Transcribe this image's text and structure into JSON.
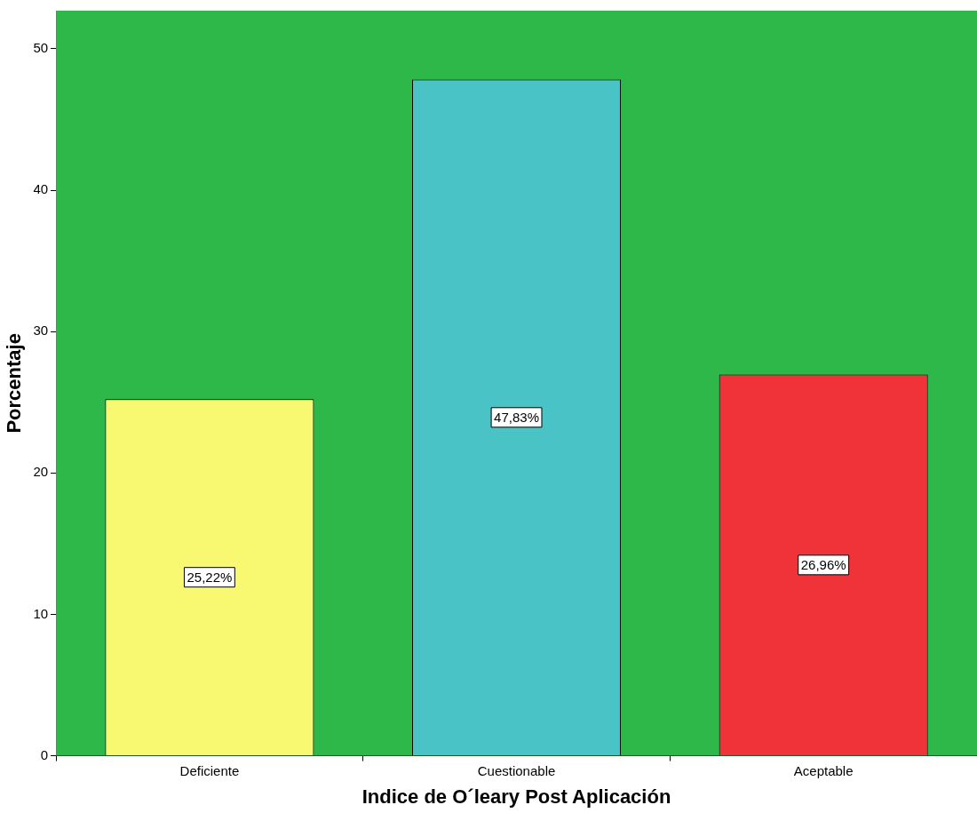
{
  "chart_data": {
    "type": "bar",
    "xlabel": "Indice de O´leary Post Aplicación",
    "ylabel": "Porcentaje",
    "categories": [
      "Deficiente",
      "Cuestionable",
      "Aceptable"
    ],
    "values": [
      25.22,
      47.83,
      26.96
    ],
    "value_labels": [
      "25,22%",
      "47,83%",
      "26,96%"
    ],
    "colors": [
      "#f8f871",
      "#4ac3c6",
      "#f03339"
    ],
    "ylim": [
      0,
      52.7
    ],
    "yticks": [
      0,
      10,
      20,
      30,
      40,
      50
    ],
    "legend": false
  }
}
